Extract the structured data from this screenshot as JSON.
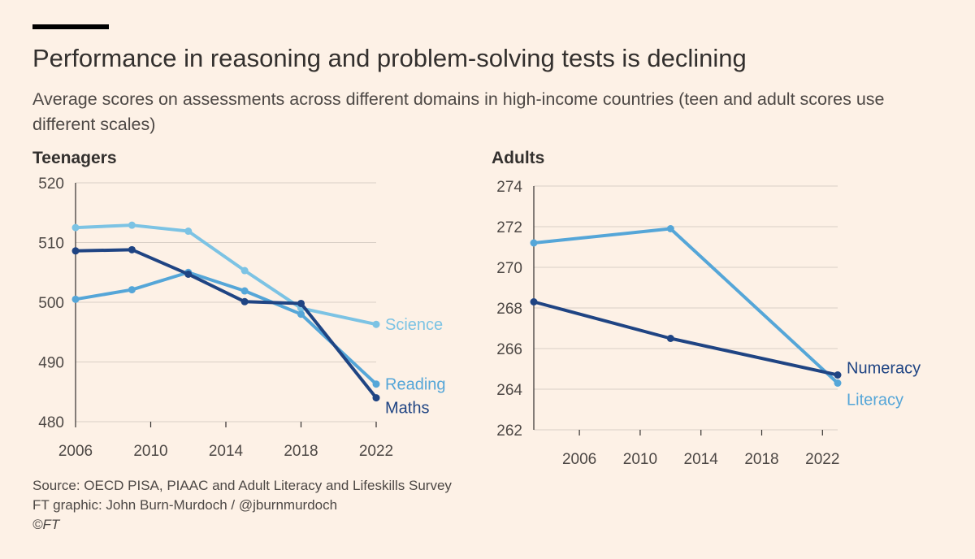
{
  "title": "Performance in reasoning and problem-solving tests is declining",
  "subtitle": "Average scores on assessments across different domains in high-income countries (teen and adult scores use different scales)",
  "footer": {
    "source": "Source: OECD PISA, PIAAC and Adult Literacy and Lifeskills Survey",
    "credit": "FT graphic: John Burn-Murdoch / @jburnmurdoch",
    "copyright": "©FT"
  },
  "colors": {
    "background": "#fdf1e6",
    "maths": "#1f4483",
    "reading": "#55a6d8",
    "science": "#7cc3e4",
    "numeracy": "#1f4483",
    "literacy": "#55a6d8",
    "axis": "#33302e",
    "grid": "#d9cfc6"
  },
  "chart_data": [
    {
      "type": "line",
      "title": "Teenagers",
      "xlabel": "",
      "ylabel": "",
      "xlim": [
        2006,
        2022
      ],
      "ylim": [
        480,
        520
      ],
      "xticks": [
        2006,
        2010,
        2014,
        2018,
        2022
      ],
      "yticks": [
        480,
        490,
        500,
        510,
        520
      ],
      "series": [
        {
          "name": "Science",
          "color": "#7cc3e4",
          "x": [
            2006,
            2009,
            2012,
            2015,
            2018,
            2022
          ],
          "values": [
            512.5,
            512.9,
            511.9,
            505.3,
            499.0,
            496.3
          ]
        },
        {
          "name": "Reading",
          "color": "#55a6d8",
          "x": [
            2006,
            2009,
            2012,
            2015,
            2018,
            2022
          ],
          "values": [
            500.5,
            502.1,
            505.0,
            501.9,
            498.0,
            486.3
          ]
        },
        {
          "name": "Maths",
          "color": "#1f4483",
          "x": [
            2006,
            2009,
            2012,
            2015,
            2018,
            2022
          ],
          "values": [
            508.6,
            508.8,
            504.7,
            500.1,
            499.8,
            484.0
          ]
        }
      ]
    },
    {
      "type": "line",
      "title": "Adults",
      "xlabel": "",
      "ylabel": "",
      "xlim": [
        2003,
        2023
      ],
      "ylim": [
        262,
        274
      ],
      "xticks": [
        2006,
        2010,
        2014,
        2018,
        2022
      ],
      "yticks": [
        262,
        264,
        266,
        268,
        270,
        272,
        274
      ],
      "series": [
        {
          "name": "Literacy",
          "color": "#55a6d8",
          "x": [
            2003,
            2012,
            2023
          ],
          "values": [
            271.2,
            271.9,
            264.3
          ]
        },
        {
          "name": "Numeracy",
          "color": "#1f4483",
          "x": [
            2003,
            2012,
            2023
          ],
          "values": [
            268.3,
            266.5,
            264.7
          ]
        }
      ]
    }
  ]
}
